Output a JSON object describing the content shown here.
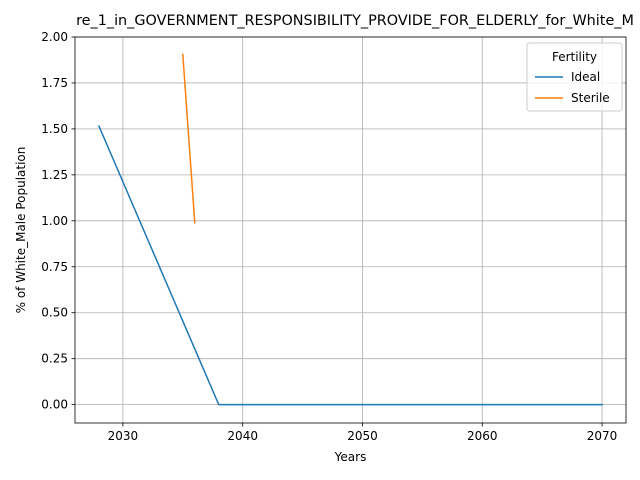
{
  "chart_data": {
    "type": "line",
    "title": "re_1_in_GOVERNMENT_RESPONSIBILITY_PROVIDE_FOR_ELDERLY_for_White_M",
    "xlabel": "Years",
    "ylabel": "% of White_Male Population",
    "xlim": [
      2026,
      2072
    ],
    "ylim": [
      -0.1,
      2.0
    ],
    "xticks": [
      2030,
      2040,
      2050,
      2060,
      2070
    ],
    "yticks": [
      0.0,
      0.25,
      0.5,
      0.75,
      1.0,
      1.25,
      1.5,
      1.75,
      2.0
    ],
    "ytick_labels": [
      "0.00",
      "0.25",
      "0.50",
      "0.75",
      "1.00",
      "1.25",
      "1.50",
      "1.75",
      "2.00"
    ],
    "grid": true,
    "legend": {
      "title": "Fertility",
      "placement": "top-right"
    },
    "series": [
      {
        "name": "Ideal",
        "color": "#1f77b4",
        "x": [
          2028,
          2038,
          2040,
          2050,
          2060,
          2070
        ],
        "y": [
          1.515,
          0.0,
          0.0,
          0.0,
          0.0,
          0.0
        ]
      },
      {
        "name": "Sterile",
        "color": "#ff7f0e",
        "x": [
          2035,
          2036
        ],
        "y": [
          1.905,
          0.99
        ]
      }
    ]
  }
}
